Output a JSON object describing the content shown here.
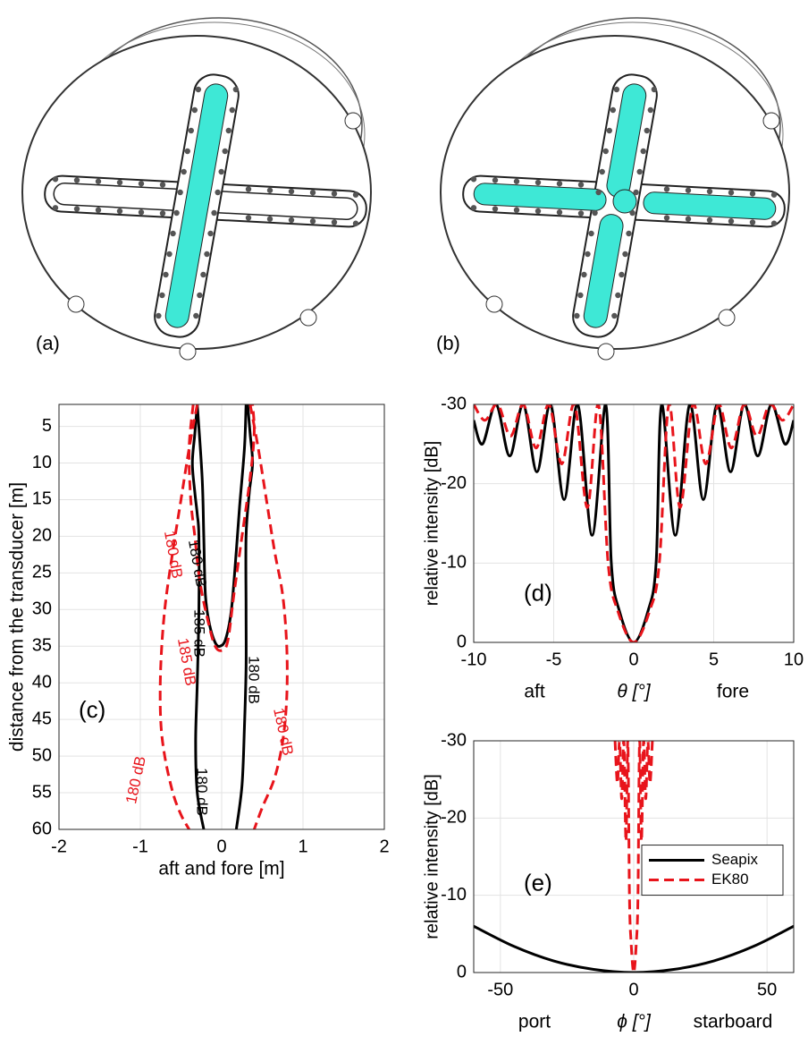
{
  "image_labels": [
    "(a)",
    "(b)"
  ],
  "chart_data": [
    {
      "type": "contour",
      "panel_label": "(c)",
      "xlabel": "aft and fore [m]",
      "ylabel": "distance from the transducer [m]",
      "xlim": [
        -2,
        2
      ],
      "xticks": [
        -2,
        -1,
        0,
        1,
        2
      ],
      "ylim": [
        2,
        60
      ],
      "yticks": [
        5,
        10,
        15,
        20,
        25,
        30,
        35,
        40,
        45,
        50,
        55,
        60
      ],
      "y_inverted": true,
      "grid": true,
      "series": [
        {
          "color": "#000000",
          "dash": false,
          "x": [
            -0.3,
            -0.33,
            -0.36,
            -0.33,
            -0.3,
            -0.28,
            -0.28,
            -0.3,
            -0.32,
            -0.3,
            -0.22
          ],
          "values": [
            2,
            6,
            10,
            14,
            17,
            20,
            30,
            40,
            48,
            55,
            60
          ]
        },
        {
          "color": "#000000",
          "dash": false,
          "x": [
            -0.3,
            -0.24,
            -0.22,
            -0.2,
            -0.15,
            -0.08,
            -0.02,
            0.05,
            0.12,
            0.18,
            0.22,
            0.28,
            0.3
          ],
          "values": [
            2,
            12,
            20,
            28,
            32,
            34.5,
            35,
            34,
            30,
            22,
            16,
            8,
            2
          ]
        },
        {
          "color": "#000000",
          "dash": false,
          "x": [
            0.32,
            0.35,
            0.38,
            0.34,
            0.3,
            0.3,
            0.3,
            0.28,
            0.25,
            0.18
          ],
          "values": [
            2,
            6,
            10,
            14,
            20,
            30,
            38,
            46,
            54,
            60
          ]
        },
        {
          "color": "#e8141b",
          "dash": true,
          "x": [
            -0.3,
            -0.4,
            -0.5,
            -0.6,
            -0.7,
            -0.75,
            -0.75,
            -0.7,
            -0.6,
            -0.5,
            -0.4
          ],
          "values": [
            2,
            8,
            15,
            22,
            30,
            38,
            45,
            50,
            55,
            58,
            60
          ]
        },
        {
          "color": "#e8141b",
          "dash": true,
          "x": [
            0.35,
            0.45,
            0.55,
            0.65,
            0.75,
            0.8,
            0.8,
            0.75,
            0.65,
            0.5,
            0.4
          ],
          "values": [
            2,
            8,
            15,
            22,
            28,
            35,
            42,
            48,
            53,
            57,
            60
          ]
        },
        {
          "color": "#e8141b",
          "dash": true,
          "x": [
            -0.35,
            -0.4,
            -0.38,
            -0.33,
            -0.27,
            -0.18,
            -0.08,
            0.02,
            0.08,
            0.15,
            0.25,
            0.35,
            0.4,
            0.38
          ],
          "values": [
            2,
            8,
            15,
            20,
            26,
            31,
            35,
            35.5,
            34,
            28,
            20,
            12,
            6,
            2
          ]
        }
      ],
      "annotations": [
        {
          "text": "180 dB",
          "color": "#000000"
        },
        {
          "text": "185 dB",
          "color": "#000000"
        },
        {
          "text": "180 dB",
          "color": "#000000"
        },
        {
          "text": "180 dB",
          "color": "#000000"
        },
        {
          "text": "180 dB",
          "color": "#e8141b"
        },
        {
          "text": "185 dB",
          "color": "#e8141b"
        },
        {
          "text": "180 dB",
          "color": "#e8141b"
        },
        {
          "text": "180 dB",
          "color": "#e8141b"
        }
      ]
    },
    {
      "type": "line",
      "panel_label": "(d)",
      "xlabel_left": "aft",
      "xlabel": "θ [°]",
      "xlabel_right": "fore",
      "ylabel": "relative intensity [dB]",
      "xlim": [
        -10,
        10
      ],
      "xticks": [
        -10,
        -5,
        0,
        5,
        10
      ],
      "ylim": [
        -30,
        0
      ],
      "yticks": [
        -30,
        -20,
        -10,
        0
      ],
      "y_inverted": true,
      "grid": true,
      "series": [
        {
          "color": "#000000",
          "dash": false,
          "x": [
            -10,
            -9.45,
            -8.6,
            -7.75,
            -6.9,
            -6.05,
            -5.2,
            -4.35,
            -3.5,
            -2.6,
            -1.75,
            -1.4,
            -0.9,
            0,
            0.9,
            1.4,
            1.75,
            2.6,
            3.5,
            4.35,
            5.2,
            6.05,
            6.9,
            7.75,
            8.6,
            9.45,
            10
          ],
          "values": [
            -28,
            -25,
            -30,
            -23.5,
            -30,
            -21.5,
            -30,
            -18,
            -30,
            -13.5,
            -30,
            -10,
            -4,
            0,
            -4,
            -10,
            -30,
            -13.5,
            -30,
            -18,
            -30,
            -21.5,
            -30,
            -23.5,
            -30,
            -25,
            -28
          ]
        },
        {
          "color": "#e8141b",
          "dash": true,
          "x": [
            -10,
            -9.3,
            -8.5,
            -7.7,
            -6.9,
            -6.1,
            -5.3,
            -4.5,
            -3.7,
            -2.9,
            -2.2,
            -1.6,
            -1,
            0,
            1,
            1.6,
            2.2,
            2.9,
            3.7,
            4.5,
            5.3,
            6.1,
            6.9,
            7.7,
            8.5,
            9.3,
            10
          ],
          "values": [
            -30,
            -28,
            -30,
            -26,
            -30,
            -24.5,
            -30,
            -22.5,
            -30,
            -17,
            -30,
            -10,
            -4,
            0,
            -4,
            -10,
            -30,
            -17,
            -30,
            -22.5,
            -30,
            -24.5,
            -30,
            -26,
            -30,
            -28,
            -30
          ]
        }
      ]
    },
    {
      "type": "line",
      "panel_label": "(e)",
      "xlabel_left": "port",
      "xlabel": "ϕ [°]",
      "xlabel_right": "starboard",
      "ylabel": "relative intensity [dB]",
      "xlim": [
        -60,
        60
      ],
      "xticks": [
        -50,
        0,
        50
      ],
      "ylim": [
        -30,
        0
      ],
      "yticks": [
        -30,
        -20,
        -10,
        0
      ],
      "y_inverted": true,
      "grid": true,
      "legend": "right",
      "series": [
        {
          "name": "Seapix",
          "color": "#000000",
          "dash": false,
          "x": [
            -60,
            -45,
            -30,
            -15,
            0,
            15,
            30,
            45,
            60
          ],
          "values": [
            -6,
            -3.4,
            -1.5,
            -0.4,
            0,
            -0.4,
            -1.5,
            -3.4,
            -6
          ]
        },
        {
          "name": "EK80",
          "color": "#e8141b",
          "dash": true,
          "x": [
            -7,
            -6.1,
            -5.3,
            -4.5,
            -3.7,
            -2.9,
            -2.2,
            -1.6,
            -1,
            0,
            1,
            1.6,
            2.2,
            2.9,
            3.7,
            4.5,
            5.3,
            6.1,
            7
          ],
          "values": [
            -30,
            -24.5,
            -30,
            -22.5,
            -30,
            -17,
            -30,
            -10,
            -4,
            0,
            -4,
            -10,
            -30,
            -17,
            -30,
            -22.5,
            -30,
            -24.5,
            -30
          ]
        }
      ]
    }
  ]
}
